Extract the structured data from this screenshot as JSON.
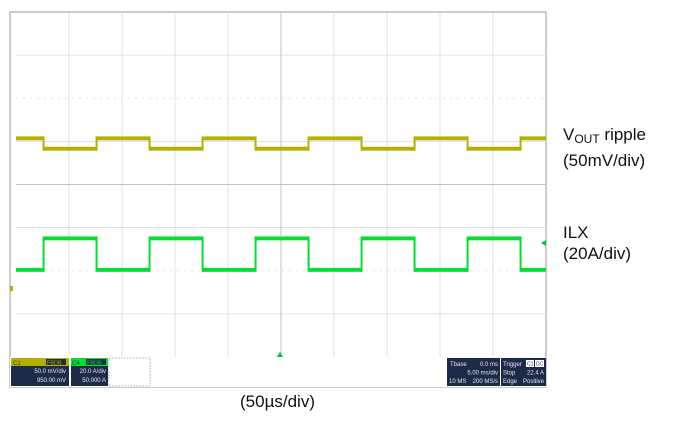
{
  "chart_data": {
    "type": "line",
    "time_unit": "µs",
    "time_per_div_us": 50,
    "divisions": 10,
    "series": [
      {
        "name": "VOUT ripple",
        "scale": "50mV/div",
        "color": "#b5b000",
        "high_div": 2.93,
        "low_div": 3.17,
        "trace_thickness_div": 0.09,
        "square_wave": {
          "period_us": 100,
          "start_level": "high",
          "transitions_us": [
            26,
            76,
            126,
            176,
            226,
            276,
            326,
            376,
            426,
            476
          ]
        }
      },
      {
        "name": "ILX",
        "scale": "20A/div",
        "color": "#00e030",
        "high_div": 5.25,
        "low_div": 5.98,
        "trace_thickness_div": 0.09,
        "square_wave": {
          "period_us": 100,
          "start_level": "low",
          "transitions_us": [
            26,
            76,
            126,
            176,
            226,
            276,
            326,
            376,
            426,
            476
          ]
        }
      }
    ]
  },
  "labels": {
    "vout_main": "V",
    "vout_sub": "OUT",
    "vout_rest": " ripple",
    "vout_scale": "(50mV/div)",
    "ilx_name": "ILX",
    "ilx_scale": "(20A/div)",
    "xscale": "(50µs/div)"
  },
  "status_bar": {
    "ch1_tag": "C1",
    "ch1_badge": "FBDB",
    "ch1_scale": "50.0 mV/div",
    "ch1_offset": "950.00 mV",
    "ch4_tag": "C4",
    "ch4_badge": "FBDB",
    "ch4_scale": "20.0 A/div",
    "ch4_offset": "50.000 A",
    "tbase_label": "Tbase",
    "tbase_value": "0.0 ms",
    "timediv": "5.00 ms/div",
    "samples": "10 MS",
    "rate": "200 MS/s",
    "trigger_label": "Trigger",
    "trigger_badge1": "C1",
    "trigger_badge2": "DC",
    "trigger_mode": "Stop",
    "trigger_level": "22.4 A",
    "trigger_type": "Edge",
    "trigger_slope": "Positive"
  },
  "colors": {
    "ch1": "#b5b000",
    "ch4": "#00e030",
    "grid": "#d9d9d9",
    "status_bg": "#1e2a4a",
    "marker": "#00c040"
  }
}
